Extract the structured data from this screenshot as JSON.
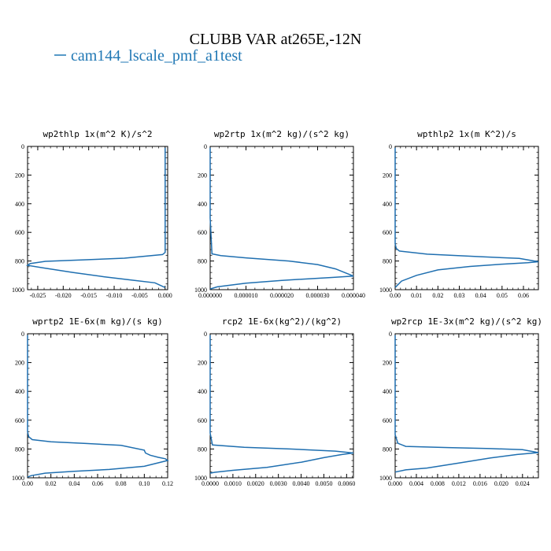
{
  "header": {
    "title": "CLUBB VAR at265E,-12N",
    "legend_label": "cam144_lscale_pmf_a1test"
  },
  "colors": {
    "series": "#1f6fb0",
    "legend": "#1f77b4"
  },
  "chart_data": [
    {
      "type": "line",
      "title": "wp2thlp  1x(m^2 K)/s^2",
      "xlim": [
        -0.027,
        0.0005
      ],
      "ylim": [
        1000,
        0
      ],
      "xticks": [
        -0.025,
        -0.02,
        -0.015,
        -0.01,
        -0.005,
        0.0
      ],
      "xticklabels": [
        "-0.025",
        "-0.020",
        "-0.015",
        "-0.010",
        "-0.005",
        "0.000"
      ],
      "yticks": [
        0,
        200,
        400,
        600,
        800,
        1000
      ],
      "yticklabels": [
        "0",
        "200",
        "400",
        "600",
        "800",
        "1000"
      ],
      "series": [
        {
          "x": [
            0.0,
            0.0,
            0.0,
            -0.0005,
            -0.008,
            -0.016,
            -0.0235,
            -0.0265,
            -0.027,
            -0.024,
            -0.018,
            -0.012,
            -0.006,
            -0.002,
            0.0
          ],
          "y": [
            10,
            500,
            740,
            755,
            780,
            792,
            802,
            818,
            830,
            848,
            880,
            910,
            935,
            952,
            985
          ]
        }
      ]
    },
    {
      "type": "line",
      "title": "wp2rtp  1x(m^2 kg)/(s^2 kg)",
      "xlim": [
        0,
        4e-05
      ],
      "ylim": [
        1000,
        0
      ],
      "xticks": [
        0,
        1e-05,
        2e-05,
        3e-05,
        4e-05
      ],
      "xticklabels": [
        "0.000000",
        "0.000010",
        "0.000020",
        "0.000030",
        "0.000040"
      ],
      "yticks": [
        0,
        200,
        400,
        600,
        800,
        1000
      ],
      "yticklabels": [
        "0",
        "200",
        "400",
        "600",
        "800",
        "1000"
      ],
      "series": [
        {
          "x": [
            0.0,
            0.0,
            5e-07,
            3e-06,
            1e-05,
            2.2e-05,
            3e-05,
            3.5e-05,
            3.8e-05,
            4e-05,
            3.4e-05,
            2e-05,
            1e-05,
            2e-06,
            0.0
          ],
          "y": [
            10,
            500,
            750,
            762,
            778,
            800,
            825,
            855,
            885,
            905,
            915,
            935,
            955,
            980,
            995
          ]
        }
      ]
    },
    {
      "type": "line",
      "title": "wpthlp2  1x(m K^2)/s",
      "xlim": [
        0,
        0.067
      ],
      "ylim": [
        1000,
        0
      ],
      "xticks": [
        0.0,
        0.01,
        0.02,
        0.03,
        0.04,
        0.05,
        0.06
      ],
      "xticklabels": [
        "0.00",
        "0.01",
        "0.02",
        "0.03",
        "0.04",
        "0.05",
        "0.06"
      ],
      "yticks": [
        0,
        200,
        400,
        600,
        800,
        1000
      ],
      "yticklabels": [
        "0",
        "200",
        "400",
        "600",
        "800",
        "1000"
      ],
      "series": [
        {
          "x": [
            0.0,
            0.0,
            0.0005,
            0.002,
            0.015,
            0.04,
            0.058,
            0.067,
            0.062,
            0.05,
            0.035,
            0.02,
            0.01,
            0.003,
            0.0
          ],
          "y": [
            10,
            680,
            712,
            730,
            752,
            770,
            782,
            805,
            812,
            822,
            838,
            862,
            900,
            940,
            985
          ]
        }
      ]
    },
    {
      "type": "line",
      "title": "wprtp2  1E-6x(m kg)/(s kg)",
      "xlim": [
        0,
        0.12
      ],
      "ylim": [
        1000,
        0
      ],
      "xticks": [
        0.0,
        0.02,
        0.04,
        0.06,
        0.08,
        0.1,
        0.12
      ],
      "xticklabels": [
        "0.00",
        "0.02",
        "0.04",
        "0.06",
        "0.08",
        "0.10",
        "0.12"
      ],
      "yticks": [
        0,
        200,
        400,
        600,
        800,
        1000
      ],
      "yticklabels": [
        "0",
        "200",
        "400",
        "600",
        "800",
        "1000"
      ],
      "series": [
        {
          "x": [
            0.0,
            0.0,
            0.001,
            0.004,
            0.02,
            0.05,
            0.08,
            0.1,
            0.101,
            0.105,
            0.112,
            0.118,
            0.12,
            0.1,
            0.07,
            0.04,
            0.015,
            0.003,
            0.0
          ],
          "y": [
            10,
            680,
            715,
            735,
            750,
            762,
            775,
            808,
            828,
            843,
            858,
            868,
            880,
            920,
            942,
            955,
            968,
            985,
            995
          ]
        }
      ]
    },
    {
      "type": "line",
      "title": "rcp2  1E-6x(kg^2)/(kg^2)",
      "xlim": [
        0,
        0.0063
      ],
      "ylim": [
        1000,
        0
      ],
      "xticks": [
        0.0,
        0.001,
        0.002,
        0.003,
        0.004,
        0.005,
        0.006
      ],
      "xticklabels": [
        "0.0000",
        "0.0010",
        "0.0020",
        "0.0030",
        "0.0040",
        "0.0050",
        "0.0060"
      ],
      "yticks": [
        0,
        200,
        400,
        600,
        800,
        1000
      ],
      "yticklabels": [
        "0",
        "200",
        "400",
        "600",
        "800",
        "1000"
      ],
      "series": [
        {
          "x": [
            0.0,
            0.0,
            0.0001,
            0.0015,
            0.0035,
            0.0055,
            0.0063,
            0.0058,
            0.005,
            0.004,
            0.0025,
            0.001,
            0.0002,
            0.0
          ],
          "y": [
            10,
            690,
            772,
            788,
            800,
            815,
            828,
            838,
            860,
            892,
            928,
            948,
            962,
            968
          ]
        }
      ]
    },
    {
      "type": "line",
      "title": "wp2rcp  1E-3x(m^2 kg)/(s^2 kg)",
      "xlim": [
        0,
        0.027
      ],
      "ylim": [
        1000,
        0
      ],
      "xticks": [
        0.0,
        0.004,
        0.008,
        0.012,
        0.016,
        0.02,
        0.024
      ],
      "xticklabels": [
        "0.000",
        "0.004",
        "0.008",
        "0.012",
        "0.016",
        "0.020",
        "0.024"
      ],
      "yticks": [
        0,
        200,
        400,
        600,
        800,
        1000
      ],
      "yticklabels": [
        "0",
        "200",
        "400",
        "600",
        "800",
        "1000"
      ],
      "series": [
        {
          "x": [
            0.0,
            0.0,
            0.0005,
            0.002,
            0.01,
            0.018,
            0.024,
            0.027,
            0.023,
            0.018,
            0.012,
            0.006,
            0.002,
            0.0
          ],
          "y": [
            10,
            700,
            760,
            782,
            790,
            797,
            805,
            825,
            838,
            862,
            898,
            932,
            945,
            960
          ]
        }
      ]
    }
  ]
}
